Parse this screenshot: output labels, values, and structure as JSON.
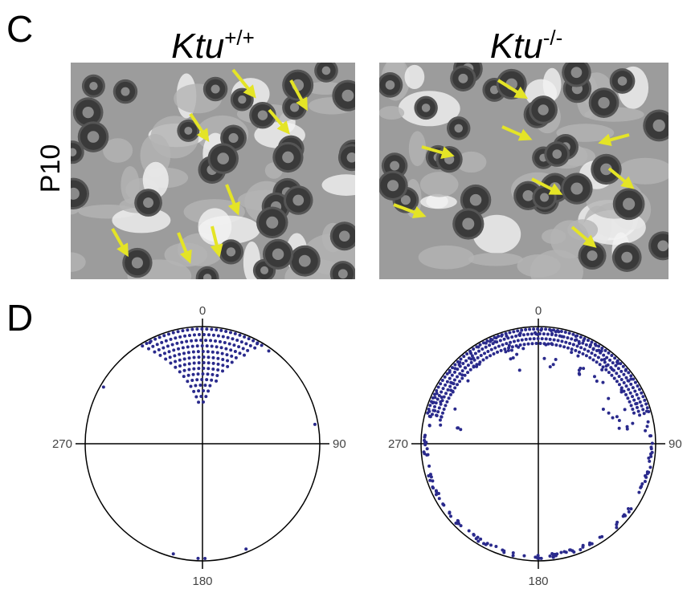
{
  "panels": [
    {
      "label": "C",
      "row_label": "P10",
      "columns": [
        {
          "gene": "Ktu",
          "genotype": "+/+"
        },
        {
          "gene": "Ktu",
          "genotype": "-/-"
        }
      ]
    },
    {
      "label": "D",
      "angle_labels": [
        0,
        90,
        180,
        270
      ]
    }
  ]
}
